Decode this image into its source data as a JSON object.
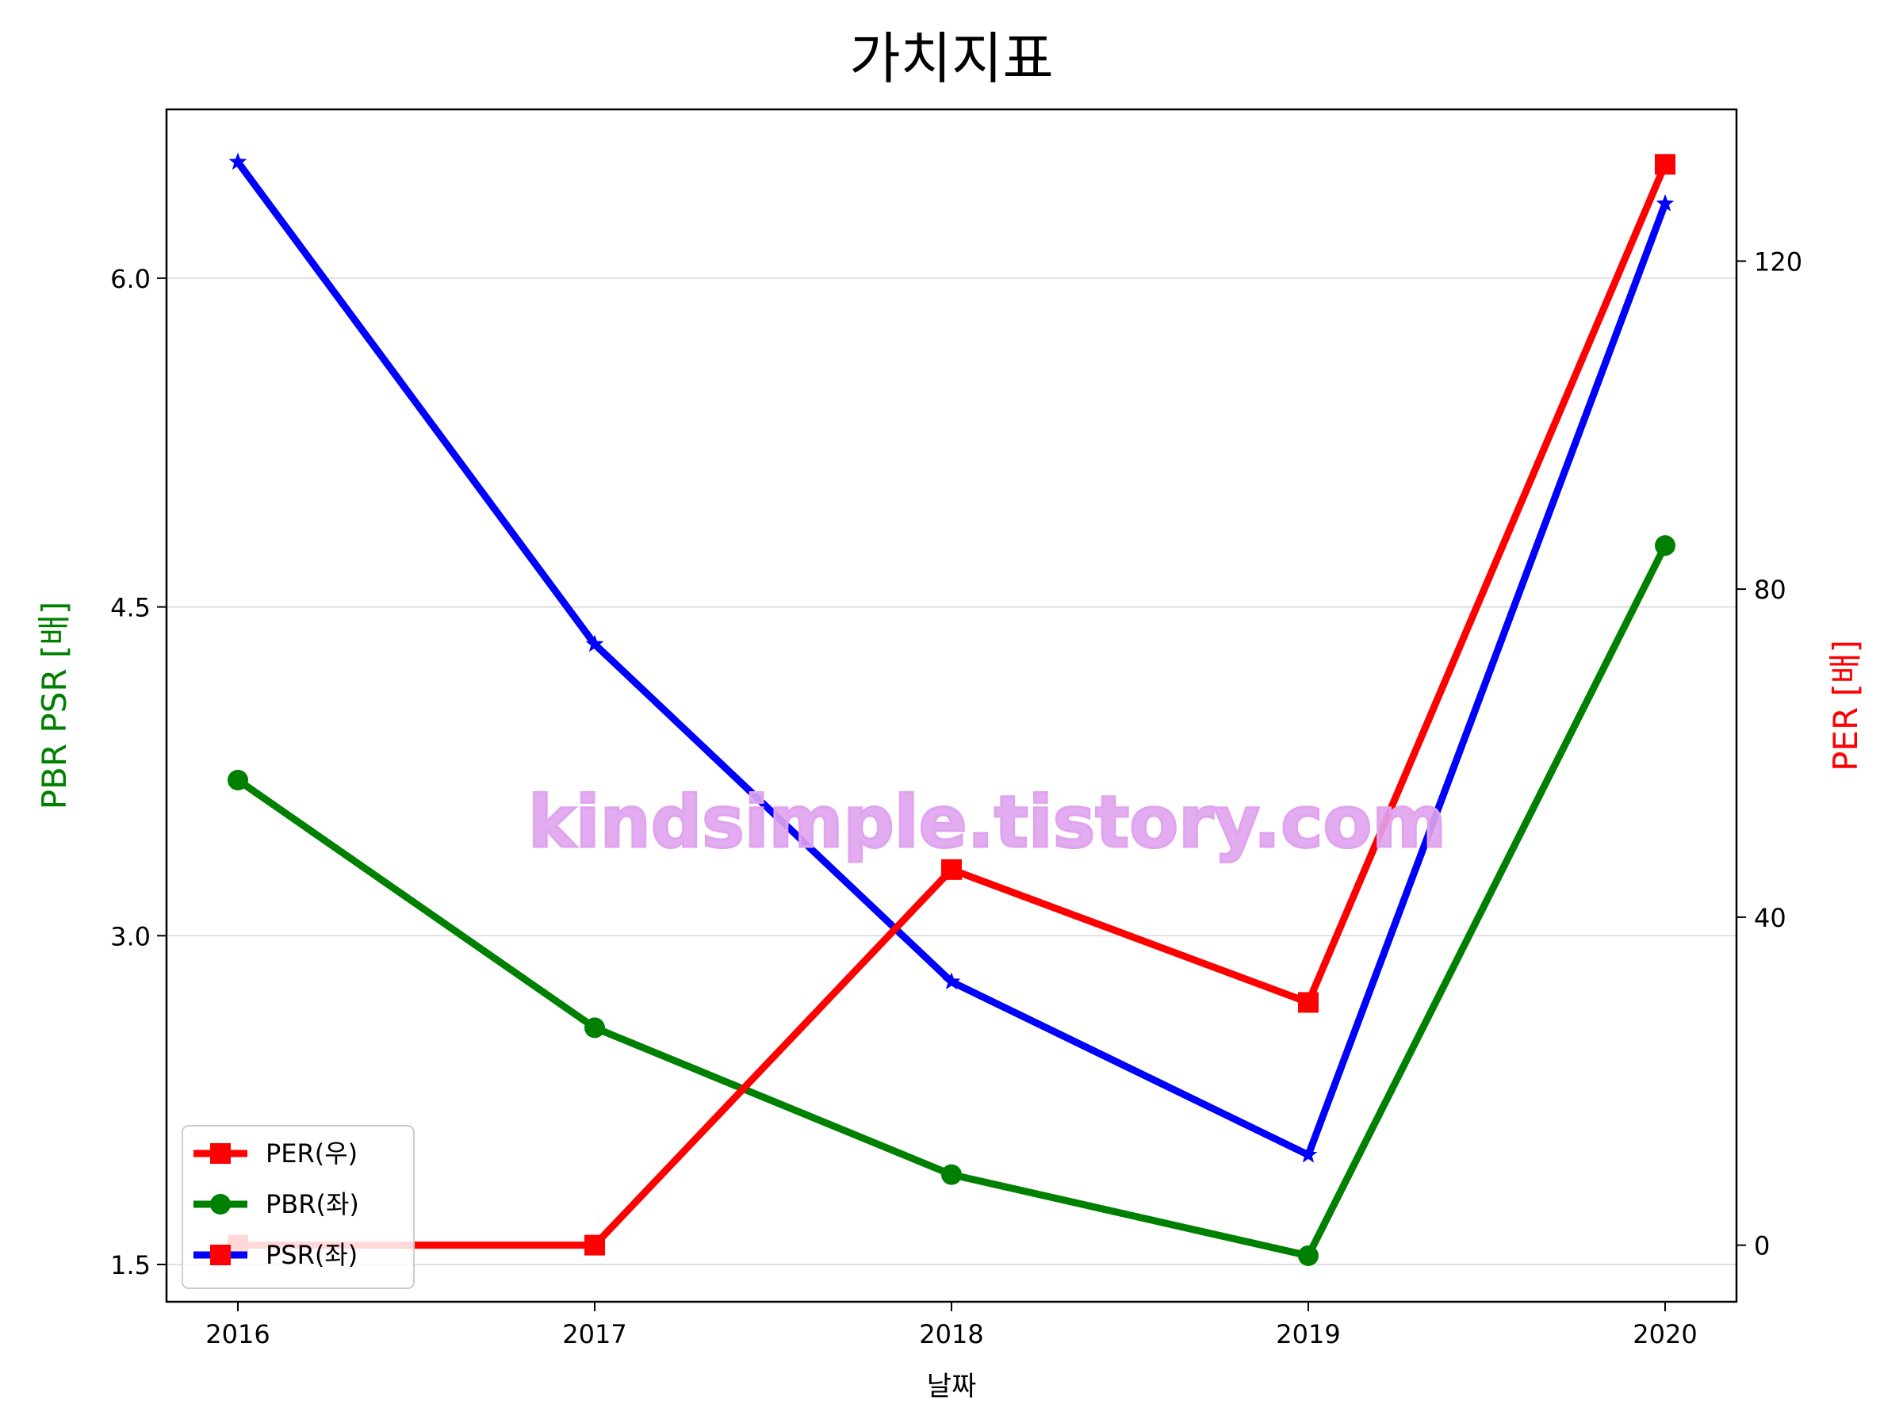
{
  "chart_data": {
    "type": "line",
    "title": "가치지표",
    "xlabel": "날짜",
    "ylabel_left": "PBR PSR [배]",
    "ylabel_right": "PER [배]",
    "categories": [
      "2016",
      "2017",
      "2018",
      "2019",
      "2020"
    ],
    "ylim_left": [
      1.33,
      6.77
    ],
    "yticks_left": [
      "1.5",
      "3.0",
      "4.5",
      "6.0"
    ],
    "ylim_right": [
      -6.9,
      138.5
    ],
    "yticks_right": [
      "0",
      "40",
      "80",
      "120"
    ],
    "grid": true,
    "legend_position": "lower-left",
    "watermark": "kindsimple.tistory.com",
    "series": [
      {
        "name": "PER(우)",
        "axis": "right",
        "color": "#ff0000",
        "marker": "square",
        "values": [
          0,
          0,
          45.8,
          29.6,
          131.8
        ]
      },
      {
        "name": "PBR(좌)",
        "axis": "left",
        "color": "#008000",
        "marker": "circle",
        "values": [
          3.71,
          2.58,
          1.91,
          1.54,
          4.78
        ]
      },
      {
        "name": "PSR(좌)",
        "axis": "left",
        "color": "#0000ff",
        "marker": "star",
        "values": [
          6.53,
          4.33,
          2.79,
          2.0,
          6.34
        ]
      }
    ],
    "legend_color_overrides": {
      "PSR(좌)": "#ff0000"
    },
    "colors": {
      "left_axis_label": "#008000",
      "right_axis_label": "#ff0000",
      "watermark": "#e0a3ee",
      "grid": "#cccccc"
    }
  }
}
